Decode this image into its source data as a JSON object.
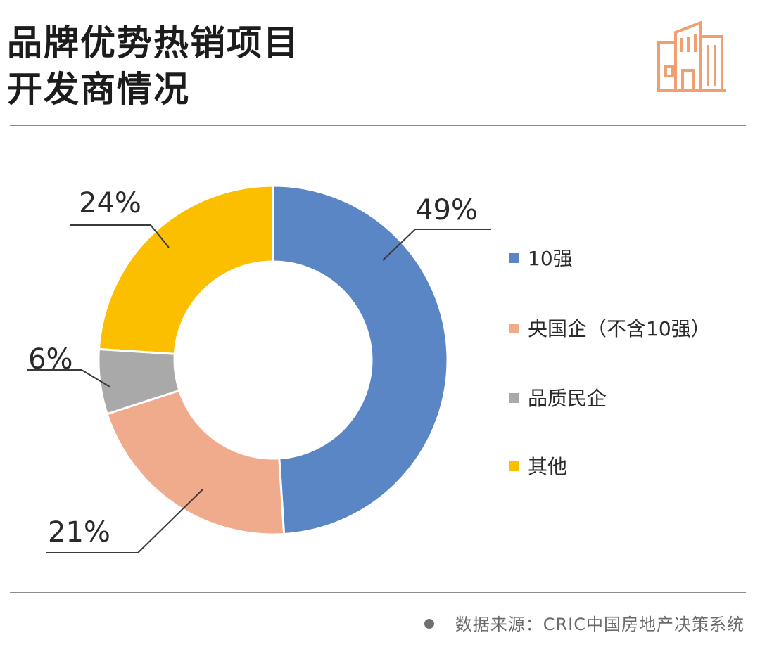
{
  "header": {
    "title_line1": "品牌优势热销项目",
    "title_line2": "开发商情况",
    "icon": "building-icon",
    "icon_color": "#f0a070"
  },
  "chart_data": {
    "type": "pie",
    "style": "donut",
    "title": "品牌优势热销项目开发商情况",
    "categories": [
      "10强",
      "央国企（不含10强）",
      "品质民企",
      "其他"
    ],
    "values": [
      49,
      21,
      6,
      24
    ],
    "data_labels": [
      "49%",
      "21%",
      "6%",
      "24%"
    ],
    "colors": [
      "#5b86c5",
      "#f0ab8d",
      "#a9a9a9",
      "#fbbf00"
    ],
    "legend_position": "right",
    "start_angle_deg": 0,
    "direction": "clockwise"
  },
  "footer": {
    "source": "数据来源：CRIC中国房地产决策系统"
  }
}
